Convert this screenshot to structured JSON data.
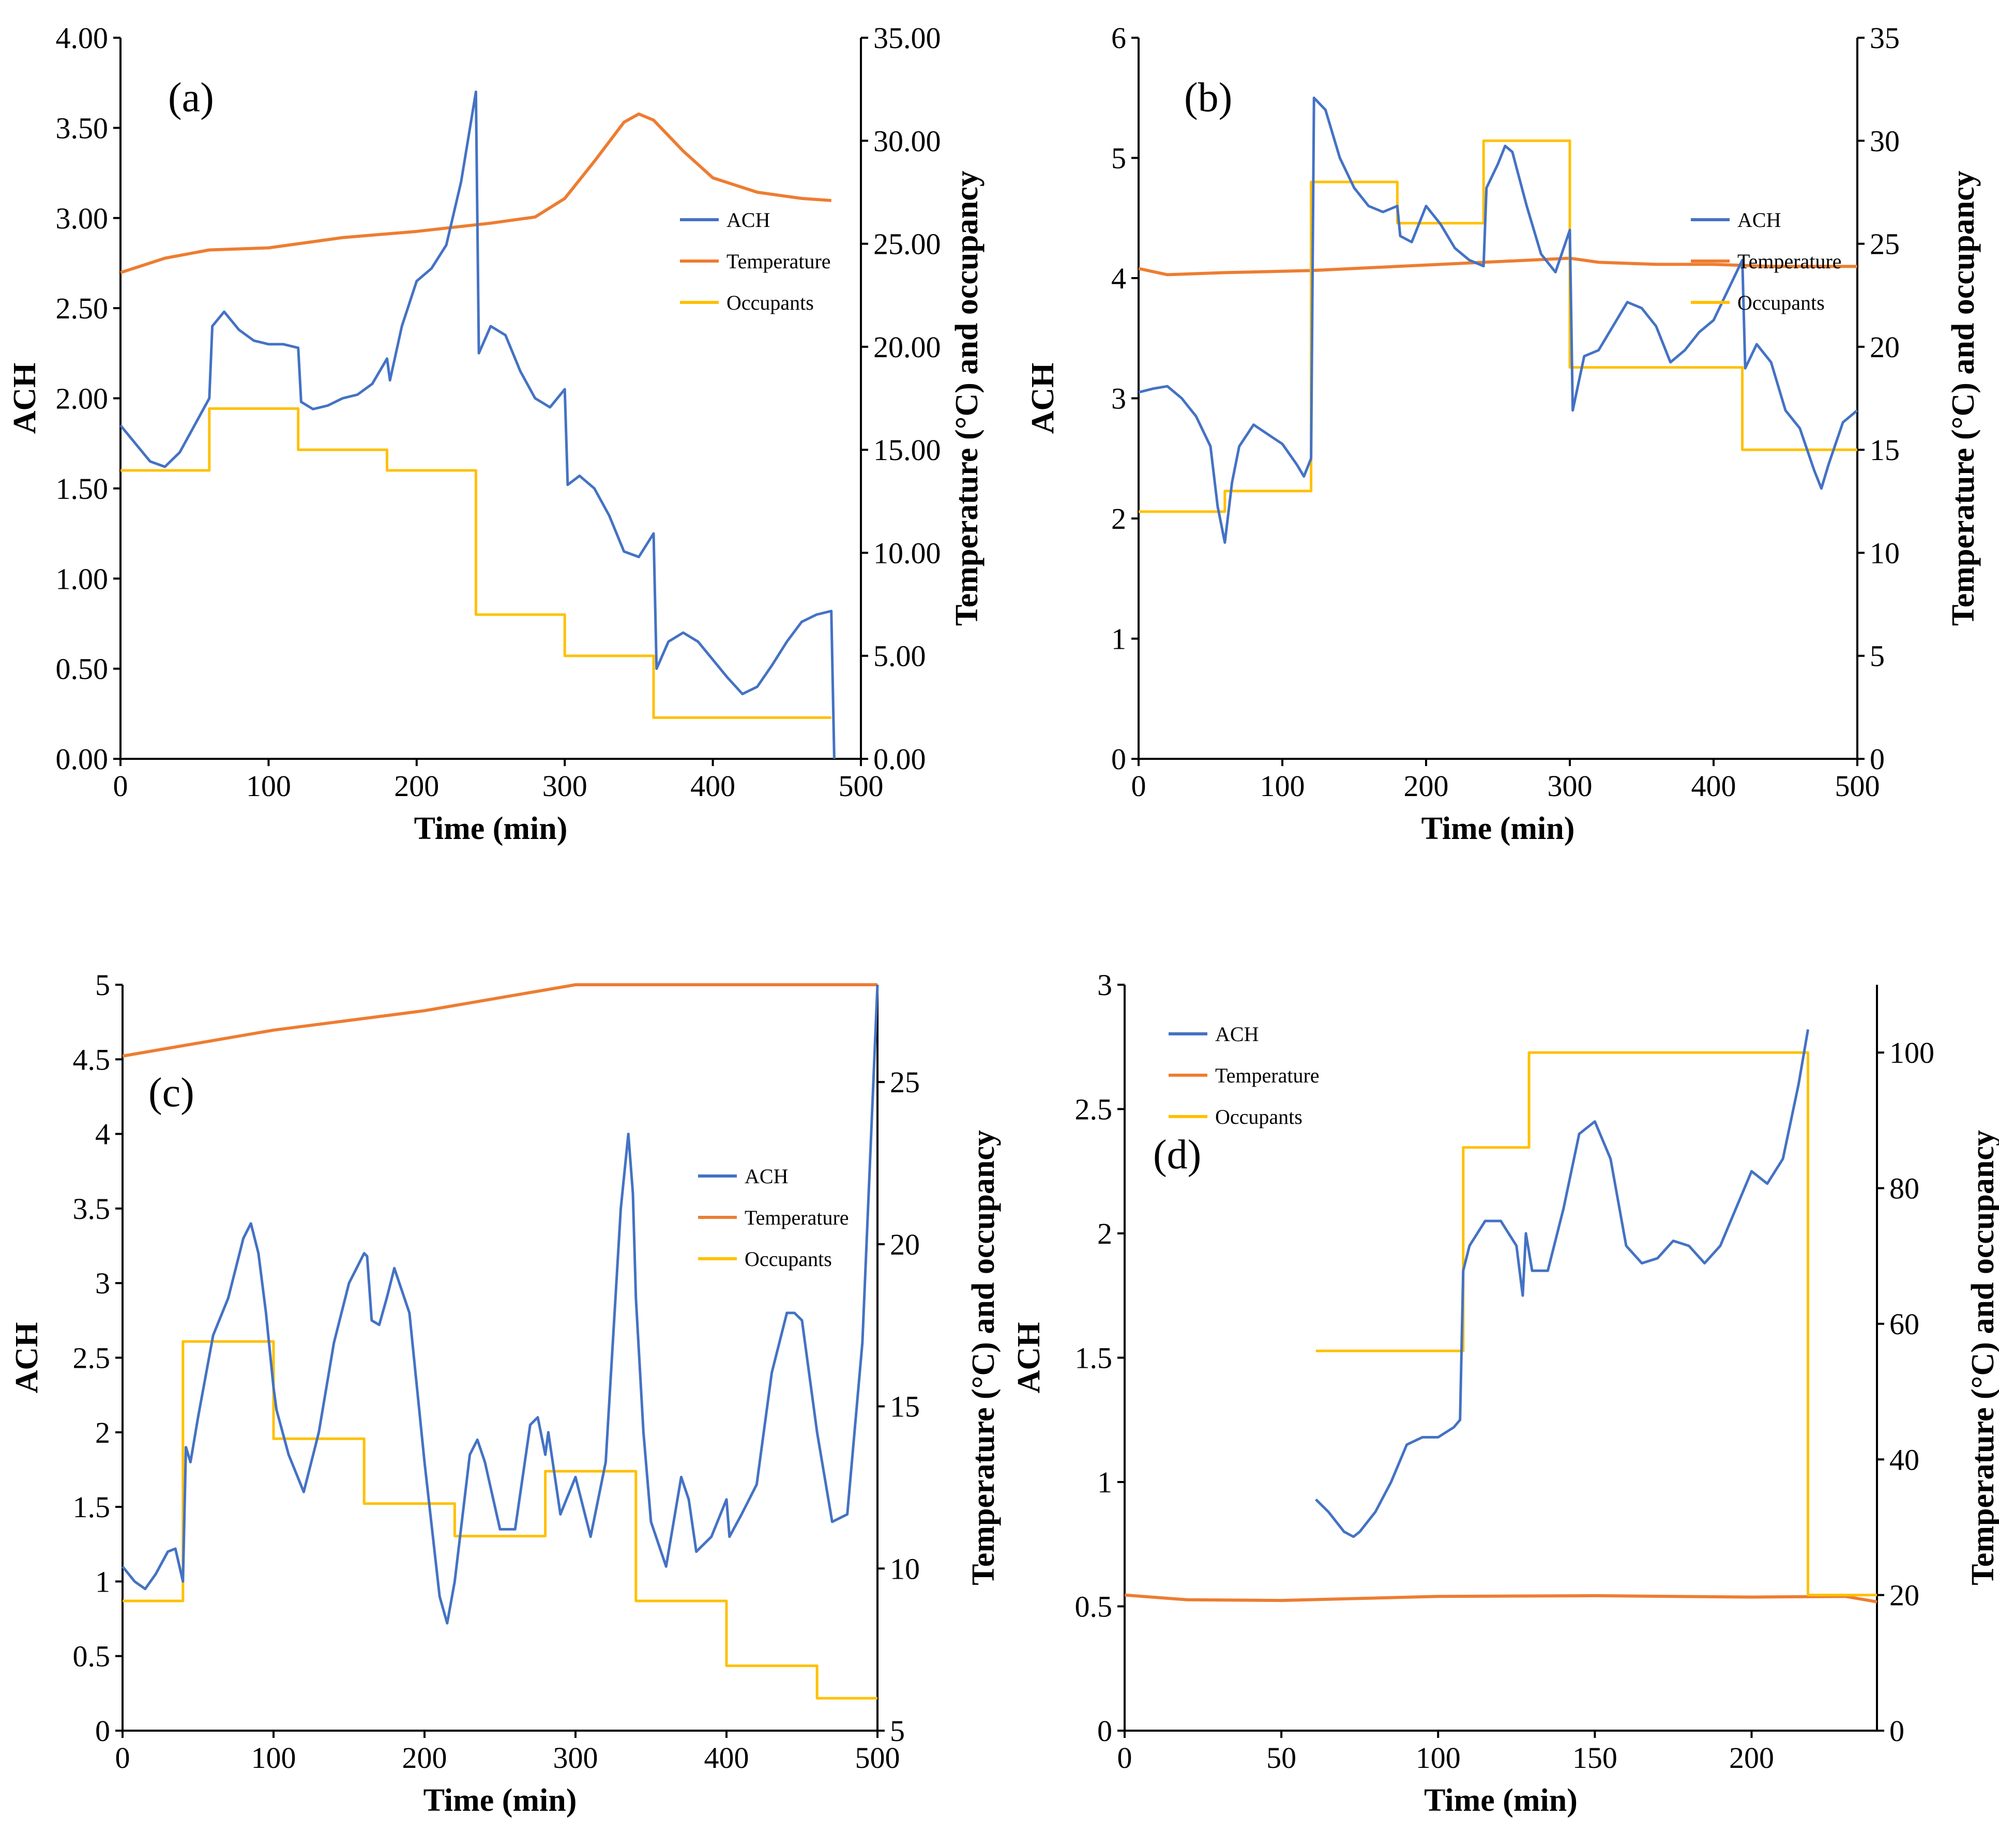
{
  "colors": {
    "ach": "#4472C4",
    "temperature": "#ED7D31",
    "occupants": "#FFC000",
    "axis": "#000000"
  },
  "chart_data": [
    {
      "panel": "(a)",
      "type": "line",
      "xlabel": "Time (min)",
      "ylabel": "ACH",
      "y2label": "Temperature (°C) and occupancy",
      "xlim": [
        0,
        500
      ],
      "ylim": [
        0,
        4
      ],
      "y2lim": [
        0,
        35
      ],
      "xticks": [
        0,
        100,
        200,
        300,
        400,
        500
      ],
      "yticks": [
        0,
        0.5,
        1,
        1.5,
        2,
        2.5,
        3,
        3.5,
        4
      ],
      "y2ticks": [
        0,
        5,
        10,
        15,
        20,
        25,
        30,
        35
      ],
      "ytick_labels": [
        "0.00",
        "0.50",
        "1.00",
        "1.50",
        "2.00",
        "2.50",
        "3.00",
        "3.50",
        "4.00"
      ],
      "y2tick_labels": [
        "0.00",
        "5.00",
        "10.00",
        "15.00",
        "20.00",
        "25.00",
        "30.00",
        "35.00"
      ],
      "legend": {
        "position": "right",
        "entries": [
          "ACH",
          "Temperature",
          "Occupants"
        ]
      },
      "series": [
        {
          "name": "ACH",
          "axis": "y",
          "x": [
            0,
            10,
            20,
            30,
            40,
            50,
            60,
            62,
            70,
            80,
            90,
            100,
            110,
            120,
            122,
            130,
            140,
            150,
            160,
            170,
            180,
            182,
            190,
            200,
            210,
            220,
            230,
            240,
            242,
            250,
            260,
            270,
            280,
            290,
            300,
            302,
            310,
            320,
            330,
            340,
            350,
            360,
            362,
            370,
            380,
            390,
            400,
            410,
            420,
            430,
            440,
            450,
            460,
            470,
            480,
            482
          ],
          "values": [
            1.85,
            1.75,
            1.65,
            1.62,
            1.7,
            1.85,
            2.0,
            2.4,
            2.48,
            2.38,
            2.32,
            2.3,
            2.3,
            2.28,
            1.98,
            1.94,
            1.96,
            2.0,
            2.02,
            2.08,
            2.22,
            2.1,
            2.4,
            2.65,
            2.72,
            2.85,
            3.2,
            3.7,
            2.25,
            2.4,
            2.35,
            2.15,
            2.0,
            1.95,
            2.05,
            1.52,
            1.57,
            1.5,
            1.35,
            1.15,
            1.12,
            1.25,
            0.5,
            0.65,
            0.7,
            0.65,
            0.55,
            0.45,
            0.36,
            0.4,
            0.52,
            0.65,
            0.76,
            0.8,
            0.82,
            0.0
          ]
        },
        {
          "name": "Temperature",
          "axis": "y2",
          "x": [
            0,
            30,
            60,
            100,
            150,
            200,
            250,
            280,
            300,
            320,
            340,
            350,
            360,
            380,
            400,
            430,
            460,
            480
          ],
          "values": [
            23.6,
            24.3,
            24.7,
            24.8,
            25.3,
            25.6,
            26.0,
            26.3,
            27.2,
            29.0,
            30.9,
            31.3,
            31.0,
            29.5,
            28.2,
            27.5,
            27.2,
            27.1
          ]
        },
        {
          "name": "Occupants",
          "axis": "y2",
          "x": [
            0,
            60,
            60,
            120,
            120,
            180,
            180,
            240,
            240,
            300,
            300,
            360,
            360,
            480
          ],
          "values": [
            14,
            14,
            17,
            17,
            15,
            15,
            14,
            14,
            7,
            7,
            5,
            5,
            2,
            2
          ]
        }
      ]
    },
    {
      "panel": "(b)",
      "type": "line",
      "xlabel": "Time (min)",
      "ylabel": "ACH",
      "y2label": "Temperature (°C) and occupancy",
      "xlim": [
        0,
        500
      ],
      "ylim": [
        0,
        6
      ],
      "y2lim": [
        0,
        35
      ],
      "xticks": [
        0,
        100,
        200,
        300,
        400,
        500
      ],
      "yticks": [
        0,
        1,
        2,
        3,
        4,
        5,
        6
      ],
      "y2ticks": [
        0,
        5,
        10,
        15,
        20,
        25,
        30,
        35
      ],
      "ytick_labels": [
        "0",
        "1",
        "2",
        "3",
        "4",
        "5",
        "6"
      ],
      "y2tick_labels": [
        "0",
        "5",
        "10",
        "15",
        "20",
        "25",
        "30",
        "35"
      ],
      "legend": {
        "position": "right",
        "entries": [
          "ACH",
          "Temperature",
          "Occupants"
        ]
      },
      "series": [
        {
          "name": "ACH",
          "axis": "y",
          "x": [
            0,
            10,
            20,
            30,
            40,
            50,
            55,
            60,
            65,
            70,
            80,
            90,
            100,
            110,
            115,
            120,
            122,
            130,
            140,
            150,
            160,
            170,
            180,
            182,
            190,
            200,
            210,
            220,
            230,
            240,
            242,
            250,
            255,
            260,
            270,
            280,
            290,
            300,
            302,
            310,
            320,
            330,
            340,
            350,
            360,
            370,
            380,
            390,
            400,
            410,
            420,
            422,
            430,
            440,
            450,
            460,
            470,
            475,
            480,
            490,
            500
          ],
          "values": [
            3.05,
            3.08,
            3.1,
            3.0,
            2.85,
            2.6,
            2.1,
            1.8,
            2.3,
            2.6,
            2.78,
            2.7,
            2.62,
            2.45,
            2.35,
            2.5,
            5.5,
            5.4,
            5.0,
            4.75,
            4.6,
            4.55,
            4.6,
            4.35,
            4.3,
            4.6,
            4.45,
            4.25,
            4.15,
            4.1,
            4.75,
            4.95,
            5.1,
            5.05,
            4.6,
            4.2,
            4.05,
            4.4,
            2.9,
            3.35,
            3.4,
            3.6,
            3.8,
            3.75,
            3.6,
            3.3,
            3.4,
            3.55,
            3.65,
            3.9,
            4.15,
            3.25,
            3.45,
            3.3,
            2.9,
            2.75,
            2.4,
            2.25,
            2.45,
            2.8,
            2.9
          ]
        },
        {
          "name": "Temperature",
          "axis": "y2",
          "x": [
            0,
            20,
            60,
            120,
            180,
            240,
            270,
            300,
            320,
            360,
            400,
            440,
            480,
            500
          ],
          "values": [
            23.8,
            23.5,
            23.6,
            23.7,
            23.9,
            24.1,
            24.2,
            24.3,
            24.1,
            24.0,
            24.0,
            23.9,
            23.9,
            23.9
          ]
        },
        {
          "name": "Occupants",
          "axis": "y2",
          "x": [
            0,
            60,
            60,
            120,
            120,
            180,
            180,
            240,
            240,
            300,
            300,
            420,
            420,
            500
          ],
          "values": [
            12,
            12,
            13,
            13,
            28,
            28,
            26,
            26,
            30,
            30,
            19,
            19,
            15,
            15
          ]
        }
      ]
    },
    {
      "panel": "(c)",
      "type": "line",
      "xlabel": "Time (min)",
      "ylabel": "ACH",
      "y2label": "Temperature (°C) and occupancy",
      "xlim": [
        0,
        500
      ],
      "ylim": [
        0,
        5
      ],
      "y2lim": [
        5,
        28
      ],
      "xticks": [
        0,
        100,
        200,
        300,
        400,
        500
      ],
      "yticks": [
        0,
        0.5,
        1,
        1.5,
        2,
        2.5,
        3,
        3.5,
        4,
        4.5,
        5
      ],
      "y2ticks": [
        5,
        10,
        15,
        20,
        25
      ],
      "ytick_labels": [
        "0",
        "0.5",
        "1",
        "1.5",
        "2",
        "2.5",
        "3",
        "3.5",
        "4",
        "4.5",
        "5"
      ],
      "y2tick_labels": [
        "5",
        "10",
        "15",
        "20",
        "25"
      ],
      "legend": {
        "position": "center-right",
        "entries": [
          "ACH",
          "Temperature",
          "Occupants"
        ]
      },
      "series": [
        {
          "name": "ACH",
          "axis": "y",
          "x": [
            0,
            8,
            15,
            22,
            30,
            35,
            40,
            42,
            45,
            50,
            60,
            70,
            80,
            85,
            90,
            95,
            100,
            102,
            110,
            120,
            130,
            140,
            150,
            160,
            162,
            165,
            170,
            175,
            180,
            190,
            200,
            210,
            215,
            220,
            230,
            235,
            240,
            250,
            260,
            270,
            275,
            280,
            282,
            290,
            300,
            310,
            320,
            330,
            335,
            338,
            340,
            345,
            350,
            360,
            365,
            370,
            375,
            380,
            390,
            400,
            402,
            410,
            420,
            430,
            440,
            445,
            450,
            460,
            470,
            480,
            490,
            500
          ],
          "values": [
            1.1,
            1.0,
            0.95,
            1.05,
            1.2,
            1.22,
            1.0,
            1.9,
            1.8,
            2.1,
            2.65,
            2.9,
            3.3,
            3.4,
            3.2,
            2.8,
            2.3,
            2.15,
            1.85,
            1.6,
            2.0,
            2.6,
            3.0,
            3.2,
            3.18,
            2.75,
            2.72,
            2.9,
            3.1,
            2.8,
            1.8,
            0.9,
            0.72,
            1.0,
            1.85,
            1.95,
            1.8,
            1.35,
            1.35,
            2.05,
            2.1,
            1.85,
            2.0,
            1.45,
            1.7,
            1.3,
            1.8,
            3.5,
            4.0,
            3.6,
            2.9,
            2.0,
            1.4,
            1.1,
            1.4,
            1.7,
            1.55,
            1.2,
            1.3,
            1.55,
            1.3,
            1.45,
            1.65,
            2.4,
            2.8,
            2.8,
            2.75,
            2.0,
            1.4,
            1.45,
            2.6,
            5.0
          ]
        },
        {
          "name": "Temperature",
          "axis": "y2",
          "x": [
            0,
            50,
            100,
            150,
            200,
            250,
            300,
            340,
            360,
            400,
            430,
            460,
            500
          ],
          "values": [
            25.8,
            26.2,
            26.6,
            26.9,
            27.2,
            27.6,
            28.0,
            28.2,
            28.0,
            28.1,
            28.3,
            28.2,
            28.0
          ]
        },
        {
          "name": "Occupants",
          "axis": "y2",
          "x": [
            0,
            40,
            40,
            100,
            100,
            160,
            160,
            220,
            220,
            280,
            280,
            340,
            340,
            400,
            400,
            460,
            460,
            500
          ],
          "values": [
            9,
            9,
            17,
            17,
            14,
            14,
            12,
            12,
            11,
            11,
            13,
            13,
            9,
            9,
            7,
            7,
            6,
            6
          ]
        }
      ]
    },
    {
      "panel": "(d)",
      "type": "line",
      "xlabel": "Time (min)",
      "ylabel": "ACH",
      "y2label": "Temperature (°C) and occupancy",
      "xlim": [
        0,
        240
      ],
      "ylim": [
        0,
        3
      ],
      "y2lim": [
        0,
        110
      ],
      "xticks": [
        0,
        50,
        100,
        150,
        200
      ],
      "yticks": [
        0,
        0.5,
        1,
        1.5,
        2,
        2.5,
        3
      ],
      "y2ticks": [
        0,
        20,
        40,
        60,
        80,
        100
      ],
      "ytick_labels": [
        "0",
        "0.5",
        "1",
        "1.5",
        "2",
        "2.5",
        "3"
      ],
      "y2tick_labels": [
        "0",
        "20",
        "40",
        "60",
        "80",
        "100"
      ],
      "legend": {
        "position": "top-left",
        "entries": [
          "ACH",
          "Temperature",
          "Occupants"
        ]
      },
      "series": [
        {
          "name": "ACH",
          "axis": "y",
          "x": [
            61,
            65,
            70,
            73,
            75,
            80,
            85,
            90,
            95,
            100,
            105,
            107,
            108,
            110,
            115,
            120,
            125,
            127,
            128,
            130,
            135,
            140,
            145,
            150,
            155,
            160,
            165,
            170,
            175,
            180,
            185,
            190,
            195,
            200,
            205,
            210,
            215,
            218
          ],
          "values": [
            0.93,
            0.88,
            0.8,
            0.78,
            0.8,
            0.88,
            1.0,
            1.15,
            1.18,
            1.18,
            1.22,
            1.25,
            1.85,
            1.95,
            2.05,
            2.05,
            1.95,
            1.75,
            2.0,
            1.85,
            1.85,
            2.1,
            2.4,
            2.45,
            2.3,
            1.95,
            1.88,
            1.9,
            1.97,
            1.95,
            1.88,
            1.95,
            2.1,
            2.25,
            2.2,
            2.3,
            2.6,
            2.82
          ]
        },
        {
          "name": "Temperature",
          "axis": "y2",
          "x": [
            0,
            20,
            50,
            100,
            150,
            200,
            230,
            240
          ],
          "values": [
            20.0,
            19.3,
            19.2,
            19.8,
            19.9,
            19.7,
            19.8,
            19.0
          ]
        },
        {
          "name": "Occupants",
          "axis": "y2",
          "x": [
            61,
            108,
            108,
            129,
            129,
            218,
            218,
            240
          ],
          "values": [
            56,
            56,
            86,
            86,
            100,
            100,
            20,
            20
          ]
        }
      ]
    }
  ]
}
